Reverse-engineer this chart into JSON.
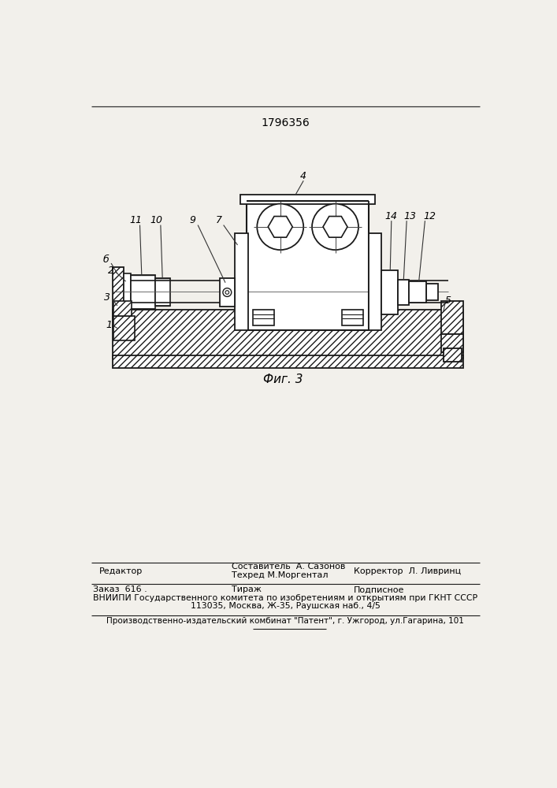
{
  "patent_number": "1796356",
  "fig_label": "Фиг. 3",
  "background_color": "#f2f0eb",
  "line_color": "#1a1a1a",
  "editor_line": "Редактор",
  "compositor": "Составитель  А. Сазонов",
  "techred": "Техред М.Моргентал",
  "corrector": "Корректор  Л. Ливринц",
  "vniiipi_line": "ВНИИПИ Государственного комитета по изобретениям и открытиям при ГКНТ СССР",
  "address_line": "113035, Москва, Ж-35, Раушская наб., 4/5",
  "publisher_line": "Производственно-издательский комбинат \"Патент\", г. Ужгород, ул.Гагарина, 101"
}
